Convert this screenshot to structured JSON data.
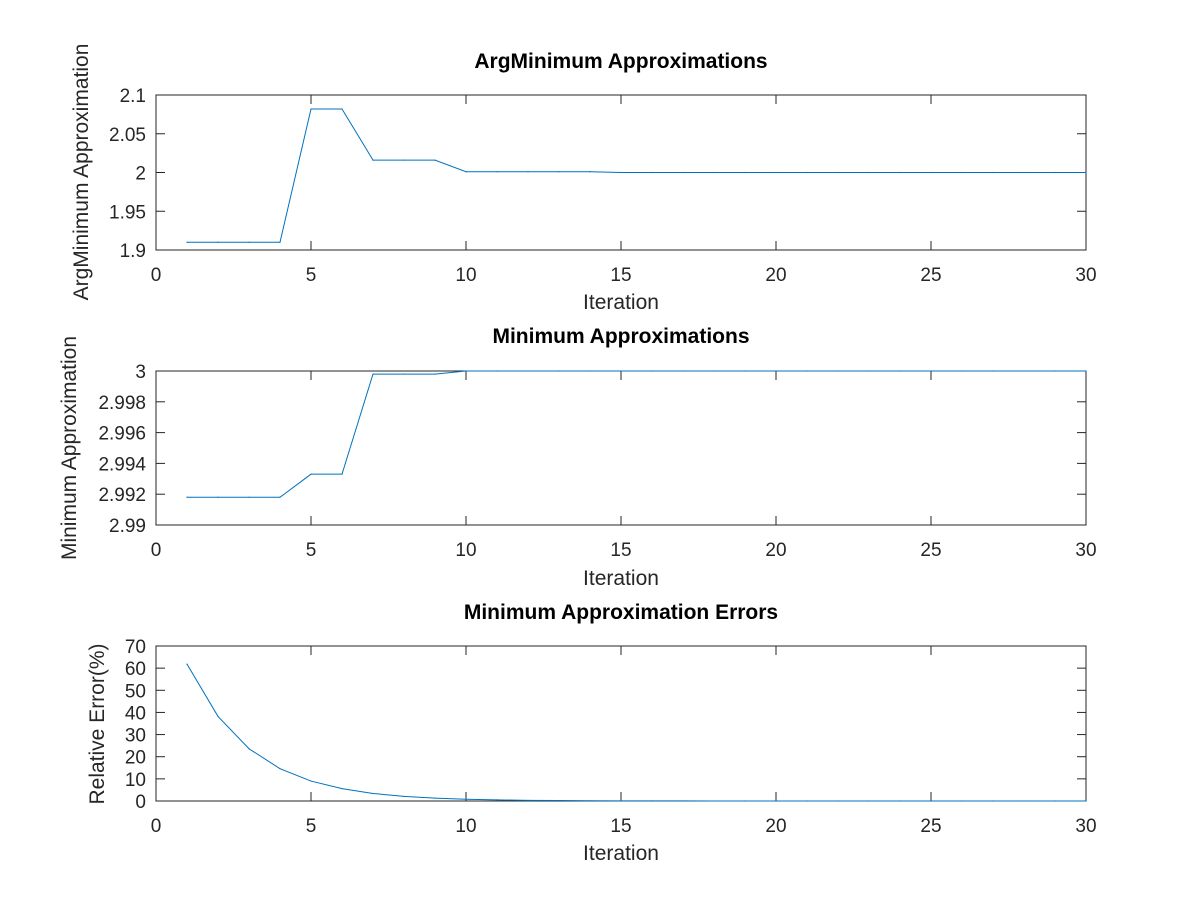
{
  "chart_data": [
    {
      "type": "line",
      "title": "ArgMinimum Approximations",
      "xlabel": "Iteration",
      "ylabel": "ArgMinimum Approximation",
      "xlim": [
        0,
        30
      ],
      "ylim": [
        1.9,
        2.1
      ],
      "xticks": [
        "0",
        "5",
        "10",
        "15",
        "20",
        "25",
        "30"
      ],
      "yticks": [
        "1.9",
        "1.95",
        "2",
        "2.05",
        "2.1"
      ],
      "grid": false,
      "color": "#0072bd",
      "x": [
        1,
        2,
        3,
        4,
        5,
        6,
        7,
        8,
        9,
        10,
        11,
        12,
        13,
        14,
        15,
        16,
        17,
        18,
        19,
        20,
        21,
        22,
        23,
        24,
        25,
        26,
        27,
        28,
        29,
        30
      ],
      "y": [
        1.91,
        1.91,
        1.91,
        1.91,
        2.082,
        2.082,
        2.016,
        2.016,
        2.016,
        2.001,
        2.001,
        2.001,
        2.001,
        2.001,
        2.0,
        2.0,
        2.0,
        2.0,
        2.0,
        2.0,
        2.0,
        2.0,
        2.0,
        2.0,
        2.0,
        2.0,
        2.0,
        2.0,
        2.0,
        2.0
      ]
    },
    {
      "type": "line",
      "title": "Minimum Approximations",
      "xlabel": "Iteration",
      "ylabel": "Minimum Approximation",
      "xlim": [
        0,
        30
      ],
      "ylim": [
        2.99,
        3.0
      ],
      "xticks": [
        "0",
        "5",
        "10",
        "15",
        "20",
        "25",
        "30"
      ],
      "yticks": [
        "2.99",
        "2.992",
        "2.994",
        "2.996",
        "2.998",
        "3"
      ],
      "grid": false,
      "color": "#0072bd",
      "x": [
        1,
        2,
        3,
        4,
        5,
        6,
        7,
        8,
        9,
        10,
        11,
        12,
        13,
        14,
        15,
        16,
        17,
        18,
        19,
        20,
        21,
        22,
        23,
        24,
        25,
        26,
        27,
        28,
        29,
        30
      ],
      "y": [
        2.9918,
        2.9918,
        2.9918,
        2.9918,
        2.9933,
        2.9933,
        2.9998,
        2.9998,
        2.9998,
        3.0,
        3.0,
        3.0,
        3.0,
        3.0,
        3.0,
        3.0,
        3.0,
        3.0,
        3.0,
        3.0,
        3.0,
        3.0,
        3.0,
        3.0,
        3.0,
        3.0,
        3.0,
        3.0,
        3.0,
        3.0
      ]
    },
    {
      "type": "line",
      "title": "Minimum Approximation Errors",
      "xlabel": "Iteration",
      "ylabel": "Relative Error(%)",
      "xlim": [
        0,
        30
      ],
      "ylim": [
        0,
        70
      ],
      "xticks": [
        "0",
        "5",
        "10",
        "15",
        "20",
        "25",
        "30"
      ],
      "yticks": [
        "0",
        "10",
        "20",
        "30",
        "40",
        "50",
        "60",
        "70"
      ],
      "grid": false,
      "color": "#0072bd",
      "x": [
        1,
        2,
        3,
        4,
        5,
        6,
        7,
        8,
        9,
        10,
        11,
        12,
        13,
        14,
        15,
        16,
        17,
        18,
        19,
        20,
        21,
        22,
        23,
        24,
        25,
        26,
        27,
        28,
        29,
        30
      ],
      "y": [
        61.8,
        38.2,
        23.6,
        14.6,
        9.0,
        5.6,
        3.4,
        2.1,
        1.3,
        0.8,
        0.5,
        0.3,
        0.2,
        0.1,
        0.07,
        0.04,
        0.03,
        0.02,
        0.01,
        0.01,
        0,
        0,
        0,
        0,
        0,
        0,
        0,
        0,
        0,
        0
      ]
    }
  ]
}
